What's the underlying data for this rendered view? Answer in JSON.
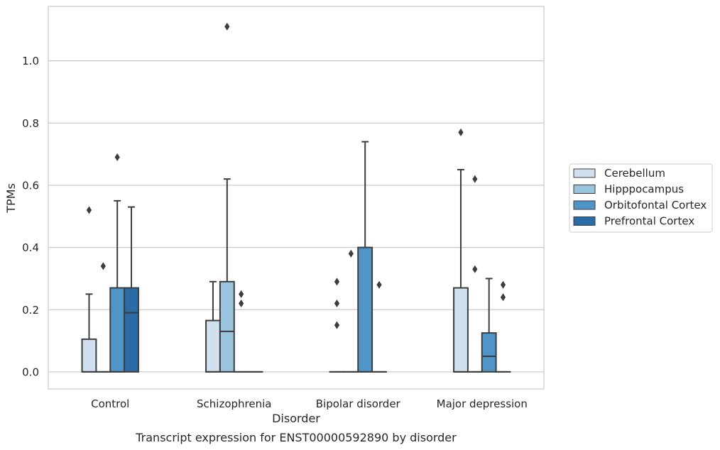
{
  "chart_data": {
    "type": "boxplot",
    "xlabel": "Disorder",
    "ylabel": "TPMs",
    "caption": "Transcript expression for ENST00000592890 by disorder",
    "categories": [
      "Control",
      "Schizophrenia",
      "Bipolar disorder",
      "Major depression"
    ],
    "ylim": [
      -0.055,
      1.175
    ],
    "yticks": [
      0.0,
      0.2,
      0.4,
      0.6,
      0.8,
      1.0
    ],
    "ytick_labels": [
      "0.0",
      "0.2",
      "0.4",
      "0.6",
      "0.8",
      "1.0"
    ],
    "grid": "horizontal",
    "legend_position": "right",
    "series": [
      {
        "name": "Cerebellum",
        "color": "#d0e0ef",
        "boxes": [
          {
            "q1": 0.0,
            "median": 0.0,
            "q3": 0.105,
            "whislo": 0.0,
            "whishi": 0.25,
            "fliers": [
              0.52
            ]
          },
          {
            "q1": 0.0,
            "median": 0.0,
            "q3": 0.165,
            "whislo": 0.0,
            "whishi": 0.29,
            "fliers": []
          },
          {
            "q1": 0.0,
            "median": 0.0,
            "q3": 0.0,
            "whislo": 0.0,
            "whishi": 0.0,
            "fliers": [
              0.15,
              0.22,
              0.29
            ]
          },
          {
            "q1": 0.0,
            "median": 0.0,
            "q3": 0.27,
            "whislo": 0.0,
            "whishi": 0.65,
            "fliers": [
              0.77
            ]
          }
        ]
      },
      {
        "name": "Hipppocampus",
        "color": "#9ac4de",
        "boxes": [
          {
            "q1": 0.0,
            "median": 0.0,
            "q3": 0.0,
            "whislo": 0.0,
            "whishi": 0.0,
            "fliers": [
              0.34
            ]
          },
          {
            "q1": 0.0,
            "median": 0.13,
            "q3": 0.29,
            "whislo": 0.0,
            "whishi": 0.62,
            "fliers": [
              1.11
            ]
          },
          {
            "q1": 0.0,
            "median": 0.0,
            "q3": 0.0,
            "whislo": 0.0,
            "whishi": 0.0,
            "fliers": [
              0.38
            ]
          },
          {
            "q1": 0.0,
            "median": 0.0,
            "q3": 0.0,
            "whislo": 0.0,
            "whishi": 0.0,
            "fliers": [
              0.33,
              0.62
            ]
          }
        ]
      },
      {
        "name": "Orbitofontal Cortex",
        "color": "#5095c7",
        "boxes": [
          {
            "q1": 0.0,
            "median": 0.0,
            "q3": 0.27,
            "whislo": 0.0,
            "whishi": 0.55,
            "fliers": [
              0.69
            ]
          },
          {
            "q1": 0.0,
            "median": 0.0,
            "q3": 0.0,
            "whislo": 0.0,
            "whishi": 0.0,
            "fliers": [
              0.22,
              0.25
            ]
          },
          {
            "q1": 0.0,
            "median": 0.0,
            "q3": 0.4,
            "whislo": 0.0,
            "whishi": 0.74,
            "fliers": []
          },
          {
            "q1": 0.0,
            "median": 0.05,
            "q3": 0.125,
            "whislo": 0.0,
            "whishi": 0.3,
            "fliers": []
          }
        ]
      },
      {
        "name": "Prefrontal Cortex",
        "color": "#2a6ba8",
        "boxes": [
          {
            "q1": 0.0,
            "median": 0.19,
            "q3": 0.27,
            "whislo": 0.0,
            "whishi": 0.53,
            "fliers": []
          },
          {
            "q1": 0.0,
            "median": 0.0,
            "q3": 0.0,
            "whislo": 0.0,
            "whishi": 0.0,
            "fliers": []
          },
          {
            "q1": 0.0,
            "median": 0.0,
            "q3": 0.0,
            "whislo": 0.0,
            "whishi": 0.0,
            "fliers": [
              0.28
            ]
          },
          {
            "q1": 0.0,
            "median": 0.0,
            "q3": 0.0,
            "whislo": 0.0,
            "whishi": 0.0,
            "fliers": [
              0.24,
              0.28
            ]
          }
        ]
      }
    ]
  }
}
